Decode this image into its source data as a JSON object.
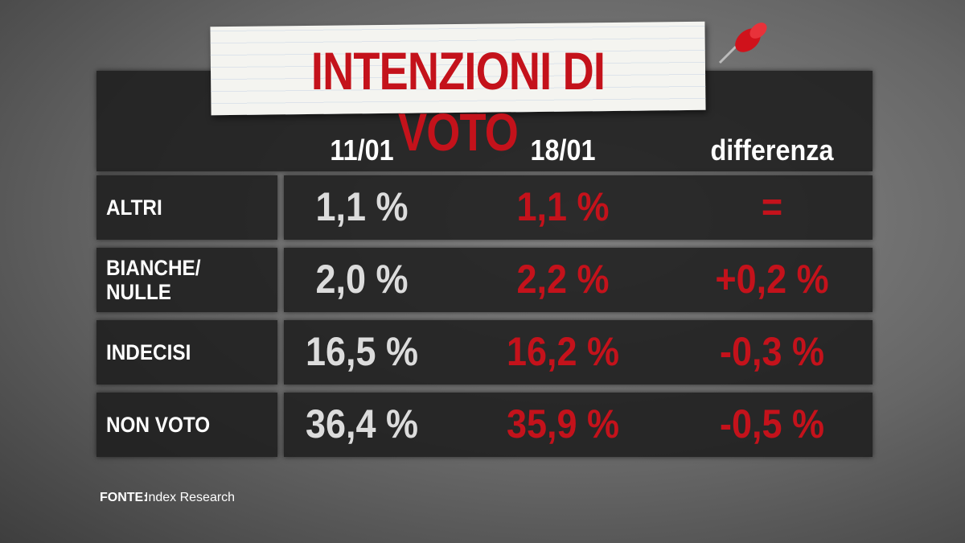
{
  "header": {
    "title": "INTENZIONI DI VOTO"
  },
  "table": {
    "columns": [
      "11/01",
      "18/01",
      "differenza"
    ],
    "rows": [
      [
        "ALTRI",
        "1,1 %",
        "1,1 %",
        "="
      ],
      [
        "BIANCHE/\nNULLE",
        "2,0 %",
        "2,2 %",
        "+0,2 %"
      ],
      [
        "INDECISI",
        "16,5 %",
        "16,2 %",
        "-0,3 %"
      ],
      [
        "NON VOTO",
        "36,4 %",
        "35,9 %",
        "-0,5 %"
      ]
    ]
  },
  "source": {
    "label": "FONTE:",
    "name": "Index Research"
  }
}
